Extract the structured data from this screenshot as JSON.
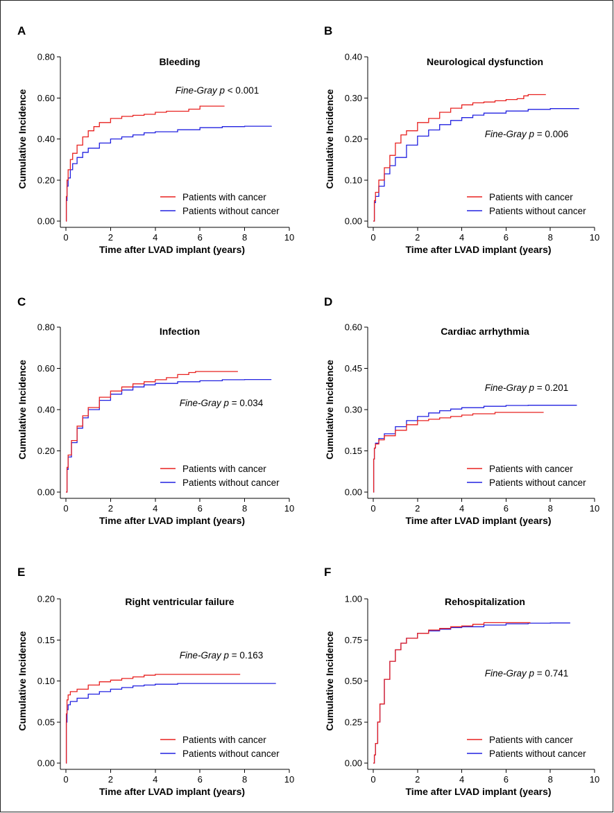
{
  "colors": {
    "with_cancer": "#e8201f",
    "without_cancer": "#2020e0"
  },
  "legend_labels": [
    "Patients with cancer",
    "Patients without cancer"
  ],
  "chart_data": [
    {
      "panel": "A",
      "type": "line",
      "title": "Bleeding",
      "xlabel": "Time after LVAD implant (years)",
      "ylabel": "Cumulative Incidence",
      "xlim": [
        0,
        10
      ],
      "ylim": [
        0,
        0.8
      ],
      "xticks": [
        "0",
        "2",
        "4",
        "6",
        "8",
        "10"
      ],
      "yticks": [
        "0.00",
        "0.20",
        "0.40",
        "0.60",
        "0.80"
      ],
      "legend_position": "bottom-right",
      "annotation": {
        "method": "Fine-Gray",
        "p_symbol": "p",
        "relation": "<",
        "value": "0.001"
      },
      "series": [
        {
          "name": "Patients with cancer",
          "x": [
            0,
            0.02,
            0.05,
            0.1,
            0.2,
            0.3,
            0.5,
            0.75,
            1,
            1.25,
            1.5,
            2,
            2.5,
            3,
            3.5,
            4,
            4.5,
            5,
            5.5,
            6,
            6.5,
            7.1
          ],
          "y": [
            0,
            0.12,
            0.2,
            0.25,
            0.3,
            0.33,
            0.37,
            0.41,
            0.44,
            0.46,
            0.48,
            0.5,
            0.51,
            0.515,
            0.52,
            0.53,
            0.535,
            0.535,
            0.545,
            0.56,
            0.56,
            0.56
          ]
        },
        {
          "name": "Patients without cancer",
          "x": [
            0,
            0.02,
            0.05,
            0.1,
            0.2,
            0.3,
            0.5,
            0.75,
            1,
            1.5,
            2,
            2.5,
            3,
            3.5,
            4,
            5,
            6,
            7,
            8,
            9.2
          ],
          "y": [
            0,
            0.1,
            0.17,
            0.21,
            0.25,
            0.28,
            0.31,
            0.335,
            0.355,
            0.38,
            0.4,
            0.41,
            0.42,
            0.43,
            0.435,
            0.445,
            0.455,
            0.46,
            0.462,
            0.463
          ]
        }
      ]
    },
    {
      "panel": "B",
      "type": "line",
      "title": "Neurological dysfunction",
      "xlabel": "Time after LVAD implant (years)",
      "ylabel": "Cumulative Incidence",
      "xlim": [
        0,
        10
      ],
      "ylim": [
        0,
        0.4
      ],
      "xticks": [
        "0",
        "2",
        "4",
        "6",
        "8",
        "10"
      ],
      "yticks": [
        "0.00",
        "0.10",
        "0.20",
        "0.30",
        "0.40"
      ],
      "legend_position": "bottom-right",
      "annotation": {
        "method": "Fine-Gray",
        "p_symbol": "p",
        "relation": "=",
        "value": "0.006"
      },
      "series": [
        {
          "name": "Patients with cancer",
          "x": [
            0,
            0.05,
            0.1,
            0.25,
            0.5,
            0.75,
            1,
            1.25,
            1.5,
            2,
            2.5,
            3,
            3.5,
            4,
            4.5,
            5,
            5.5,
            6,
            6.5,
            6.8,
            7,
            7.8
          ],
          "y": [
            0,
            0.05,
            0.07,
            0.1,
            0.13,
            0.16,
            0.19,
            0.21,
            0.22,
            0.24,
            0.25,
            0.265,
            0.275,
            0.283,
            0.288,
            0.29,
            0.293,
            0.296,
            0.298,
            0.305,
            0.308,
            0.308
          ]
        },
        {
          "name": "Patients without cancer",
          "x": [
            0,
            0.05,
            0.1,
            0.25,
            0.5,
            0.75,
            1,
            1.5,
            2,
            2.5,
            3,
            3.5,
            4,
            4.5,
            5,
            6,
            7,
            8,
            9.3
          ],
          "y": [
            0,
            0.045,
            0.06,
            0.085,
            0.115,
            0.135,
            0.155,
            0.185,
            0.207,
            0.222,
            0.235,
            0.245,
            0.252,
            0.258,
            0.263,
            0.268,
            0.272,
            0.274,
            0.274
          ]
        }
      ]
    },
    {
      "panel": "C",
      "type": "line",
      "title": "Infection",
      "xlabel": "Time after LVAD implant (years)",
      "ylabel": "Cumulative Incidence",
      "xlim": [
        0,
        10
      ],
      "ylim": [
        0,
        0.8
      ],
      "xticks": [
        "0",
        "2",
        "4",
        "6",
        "8",
        "10"
      ],
      "yticks": [
        "0.00",
        "0.20",
        "0.40",
        "0.60",
        "0.80"
      ],
      "legend_position": "bottom-right",
      "annotation": {
        "method": "Fine-Gray",
        "p_symbol": "p",
        "relation": "=",
        "value": "0.034"
      },
      "series": [
        {
          "name": "Patients with cancer",
          "x": [
            0,
            0.05,
            0.1,
            0.25,
            0.5,
            0.75,
            1,
            1.5,
            2,
            2.5,
            3,
            3.5,
            4,
            4.5,
            5,
            5.5,
            5.8,
            6.5,
            7.7
          ],
          "y": [
            0,
            0.12,
            0.18,
            0.25,
            0.32,
            0.37,
            0.41,
            0.46,
            0.49,
            0.51,
            0.525,
            0.535,
            0.545,
            0.555,
            0.57,
            0.58,
            0.585,
            0.585,
            0.585
          ]
        },
        {
          "name": "Patients without cancer",
          "x": [
            0,
            0.05,
            0.1,
            0.25,
            0.5,
            0.75,
            1,
            1.5,
            2,
            2.5,
            3,
            3.5,
            4,
            5,
            6,
            7,
            8,
            9.2
          ],
          "y": [
            0,
            0.11,
            0.17,
            0.24,
            0.31,
            0.36,
            0.4,
            0.445,
            0.475,
            0.495,
            0.51,
            0.52,
            0.527,
            0.535,
            0.54,
            0.545,
            0.546,
            0.546
          ]
        }
      ]
    },
    {
      "panel": "D",
      "type": "line",
      "title": "Cardiac arrhythmia",
      "xlabel": "Time after LVAD implant (years)",
      "ylabel": "Cumulative Incidence",
      "xlim": [
        0,
        10
      ],
      "ylim": [
        0,
        0.6
      ],
      "xticks": [
        "0",
        "2",
        "4",
        "6",
        "8",
        "10"
      ],
      "yticks": [
        "0.00",
        "0.15",
        "0.30",
        "0.45",
        "0.60"
      ],
      "legend_position": "bottom-right",
      "annotation": {
        "method": "Fine-Gray",
        "p_symbol": "p",
        "relation": "=",
        "value": "0.201"
      },
      "series": [
        {
          "name": "Patients with cancer",
          "x": [
            0,
            0.02,
            0.05,
            0.1,
            0.25,
            0.5,
            1,
            1.5,
            2,
            2.5,
            3,
            3.5,
            4,
            4.5,
            5,
            5.5,
            6,
            7,
            7.7
          ],
          "y": [
            0,
            0.12,
            0.16,
            0.175,
            0.19,
            0.205,
            0.225,
            0.245,
            0.26,
            0.265,
            0.27,
            0.275,
            0.28,
            0.285,
            0.285,
            0.29,
            0.29,
            0.29,
            0.29
          ]
        },
        {
          "name": "Patients without cancer",
          "x": [
            0,
            0.02,
            0.05,
            0.1,
            0.25,
            0.5,
            1,
            1.5,
            2,
            2.5,
            3,
            3.5,
            4,
            5,
            6,
            7,
            8,
            9.2
          ],
          "y": [
            0,
            0.12,
            0.16,
            0.178,
            0.195,
            0.212,
            0.238,
            0.26,
            0.275,
            0.288,
            0.296,
            0.302,
            0.307,
            0.312,
            0.315,
            0.316,
            0.316,
            0.316
          ]
        }
      ]
    },
    {
      "panel": "E",
      "type": "line",
      "title": "Right ventricular failure",
      "xlabel": "Time after LVAD implant (years)",
      "ylabel": "Cumulative Incidence",
      "xlim": [
        0,
        10
      ],
      "ylim": [
        0,
        0.2
      ],
      "xticks": [
        "0",
        "2",
        "4",
        "6",
        "8",
        "10"
      ],
      "yticks": [
        "0.00",
        "0.05",
        "0.10",
        "0.15",
        "0.20"
      ],
      "legend_position": "bottom-right",
      "annotation": {
        "method": "Fine-Gray",
        "p_symbol": "p",
        "relation": "=",
        "value": "0.163"
      },
      "series": [
        {
          "name": "Patients with cancer",
          "x": [
            0,
            0.02,
            0.05,
            0.1,
            0.2,
            0.5,
            1,
            1.5,
            2,
            2.5,
            3,
            3.5,
            4,
            5,
            6,
            7,
            7.8
          ],
          "y": [
            0,
            0.06,
            0.077,
            0.083,
            0.087,
            0.09,
            0.095,
            0.099,
            0.101,
            0.103,
            0.105,
            0.107,
            0.108,
            0.108,
            0.108,
            0.108,
            0.108
          ]
        },
        {
          "name": "Patients without cancer",
          "x": [
            0,
            0.02,
            0.05,
            0.1,
            0.2,
            0.5,
            1,
            1.5,
            2,
            2.5,
            3,
            3.5,
            4,
            5,
            6,
            7,
            8,
            9.4
          ],
          "y": [
            0,
            0.05,
            0.065,
            0.071,
            0.075,
            0.079,
            0.084,
            0.087,
            0.09,
            0.092,
            0.094,
            0.095,
            0.096,
            0.097,
            0.097,
            0.097,
            0.097,
            0.097
          ]
        }
      ]
    },
    {
      "panel": "F",
      "type": "line",
      "title": "Rehospitalization",
      "xlabel": "Time after LVAD implant (years)",
      "ylabel": "Cumulative Incidence",
      "xlim": [
        0,
        10
      ],
      "ylim": [
        0,
        1
      ],
      "xticks": [
        "0",
        "2",
        "4",
        "6",
        "8",
        "10"
      ],
      "yticks": [
        "0.00",
        "0.25",
        "0.50",
        "0.75",
        "1.00"
      ],
      "legend_position": "bottom-right",
      "annotation": {
        "method": "Fine-Gray",
        "p_symbol": "p",
        "relation": "=",
        "value": "0.741"
      },
      "series": [
        {
          "name": "Patients with cancer",
          "x": [
            0,
            0.05,
            0.1,
            0.2,
            0.3,
            0.5,
            0.75,
            1,
            1.25,
            1.5,
            2,
            2.5,
            3,
            3.5,
            4,
            4.5,
            5,
            6,
            7.1
          ],
          "y": [
            0,
            0.05,
            0.12,
            0.25,
            0.36,
            0.51,
            0.62,
            0.69,
            0.73,
            0.76,
            0.79,
            0.81,
            0.82,
            0.83,
            0.835,
            0.845,
            0.855,
            0.855,
            0.855
          ]
        },
        {
          "name": "Patients without cancer",
          "x": [
            0,
            0.05,
            0.1,
            0.2,
            0.3,
            0.5,
            0.75,
            1,
            1.25,
            1.5,
            2,
            2.5,
            3,
            3.5,
            4,
            5,
            6,
            7,
            8,
            8.9
          ],
          "y": [
            0,
            0.05,
            0.12,
            0.25,
            0.36,
            0.51,
            0.62,
            0.69,
            0.73,
            0.76,
            0.79,
            0.805,
            0.815,
            0.825,
            0.83,
            0.84,
            0.848,
            0.852,
            0.853,
            0.853
          ]
        }
      ]
    }
  ]
}
